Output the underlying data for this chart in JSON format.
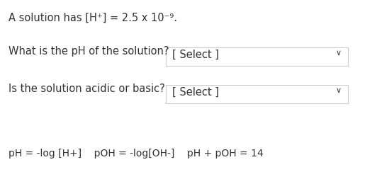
{
  "bg_color": "#ffffff",
  "text_color": "#333333",
  "box_edge_color": "#cccccc",
  "line1": "A solution has [H⁺] = 2.5 x 10⁻⁹.",
  "q1_label": "What is the pH of the solution?",
  "q2_label": "Is the solution acidic or basic?",
  "select_text": "[ Select ]",
  "arrow": "∨",
  "formula": "pH = -log [H+]    pOH = -log[OH-]    pH + pOH = 14",
  "font_size": 10.5,
  "formula_font_size": 10.0,
  "fig_width": 5.39,
  "fig_height": 2.6,
  "dpi": 100
}
